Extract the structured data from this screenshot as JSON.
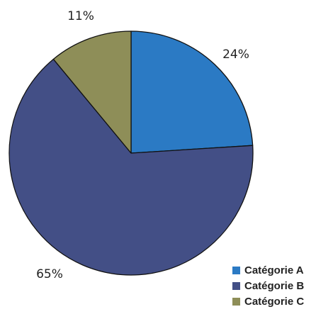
{
  "chart_data": {
    "type": "pie",
    "categories": [
      "Catégorie A",
      "Catégorie B",
      "Catégorie C"
    ],
    "values": [
      24,
      65,
      11
    ],
    "labels": [
      "24%",
      "65%",
      "11%"
    ],
    "colors": [
      "#2b7ac4",
      "#434f86",
      "#8e8e58"
    ],
    "legend": "bottom-right"
  }
}
